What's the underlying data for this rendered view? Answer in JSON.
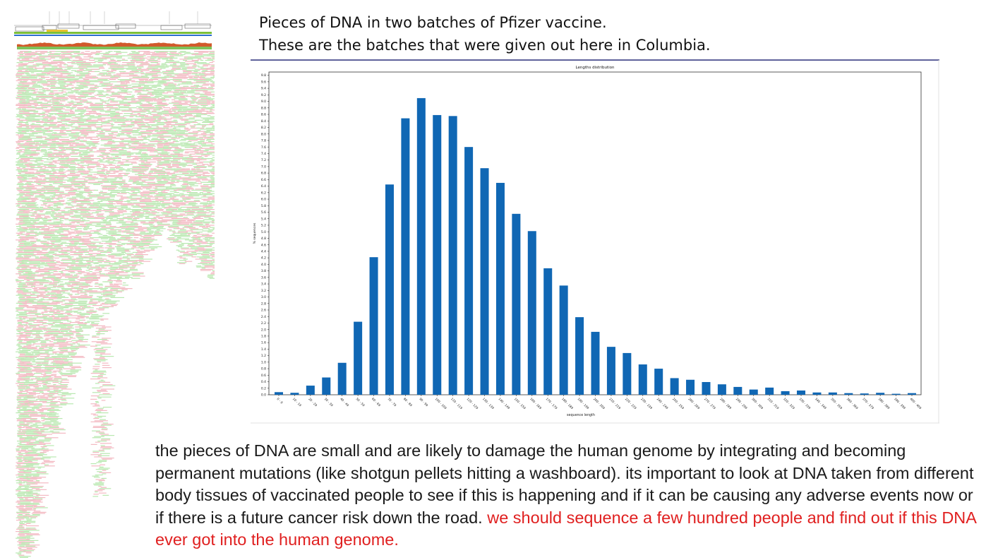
{
  "heading": {
    "line1": "Pieces of DNA in two batches of Pfizer vaccine.",
    "line2": "These are the batches that were given out here in Columbia."
  },
  "caption": {
    "main": "the pieces of DNA are small and are likely to damage the human genome by integrating and becoming permanent mutations (like shotgun pellets hitting a washboard).  its important to look at DNA taken from different body tissues of vaccinated people to see if this is happening and if it can be causing any adverse events now or if there is a future cancer risk down the road.",
    "highlight": "we should sequence a few hundred people and find out if this DNA ever got into the human genome.",
    "highlight_color": "#e02020"
  },
  "chart_data": {
    "type": "bar",
    "title": "Lengths distribution",
    "xlabel": "sequence length",
    "ylabel": "% sequences",
    "ylim": [
      0,
      9.9
    ],
    "yticks": [
      "0.0",
      "0.2",
      "0.4",
      "0.6",
      "0.8",
      "1.0",
      "1.2",
      "1.4",
      "1.6",
      "1.8",
      "2.0",
      "2.2",
      "2.4",
      "2.6",
      "2.8",
      "3.0",
      "3.2",
      "3.4",
      "3.6",
      "3.8",
      "4.0",
      "4.2",
      "4.4",
      "4.6",
      "4.8",
      "5.0",
      "5.2",
      "5.4",
      "5.6",
      "5.8",
      "6.0",
      "6.2",
      "6.4",
      "6.6",
      "6.8",
      "7.0",
      "7.2",
      "7.4",
      "7.6",
      "7.8",
      "8.0",
      "8.2",
      "8.4",
      "8.6",
      "8.8",
      "9.0",
      "9.2",
      "9.4",
      "9.6",
      "9.8"
    ],
    "categories": [
      "0 - 9",
      "10 - 19",
      "20 - 29",
      "30 - 39",
      "40 - 49",
      "50 - 59",
      "60 - 69",
      "70 - 79",
      "80 - 89",
      "90 - 99",
      "100 - 109",
      "110 - 119",
      "120 - 129",
      "130 - 139",
      "140 - 149",
      "150 - 159",
      "160 - 169",
      "170 - 179",
      "180 - 189",
      "190 - 199",
      "200 - 209",
      "210 - 219",
      "220 - 229",
      "230 - 239",
      "240 - 249",
      "250 - 259",
      "260 - 269",
      "270 - 279",
      "280 - 289",
      "290 - 299",
      "300 - 309",
      "310 - 319",
      "320 - 329",
      "330 - 339",
      "340 - 349",
      "350 - 359",
      "360 - 369",
      "370 - 379",
      "380 - 389",
      "390 - 399",
      "400 - 409"
    ],
    "values": [
      0.08,
      0.06,
      0.28,
      0.53,
      0.98,
      2.24,
      4.22,
      6.45,
      8.48,
      9.1,
      8.58,
      8.55,
      7.6,
      6.95,
      6.5,
      5.55,
      5.02,
      3.88,
      3.35,
      2.38,
      1.93,
      1.47,
      1.28,
      0.93,
      0.8,
      0.51,
      0.46,
      0.39,
      0.32,
      0.24,
      0.16,
      0.22,
      0.11,
      0.13,
      0.07,
      0.07,
      0.05,
      0.04,
      0.06,
      0.03,
      0.05
    ],
    "bar_color": "#1067b4",
    "grid": false,
    "legend": "none"
  },
  "alignment_view": {
    "description_icon": "read-alignment-pileup",
    "read_colors": [
      "#b9e8b0",
      "#f3b9c2"
    ],
    "coverage_color": "#d15a2b"
  }
}
